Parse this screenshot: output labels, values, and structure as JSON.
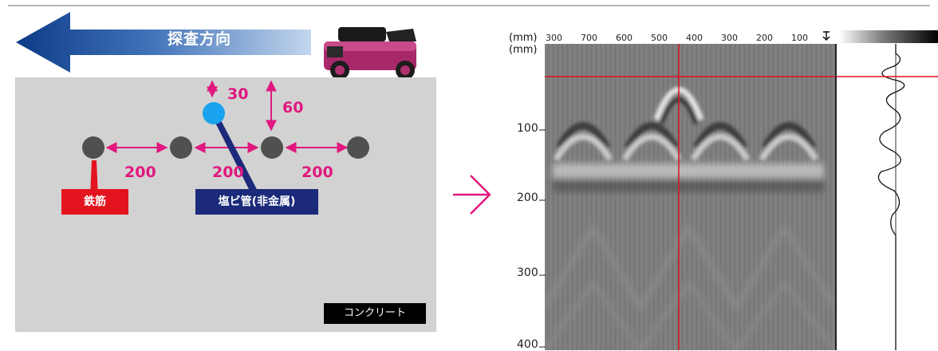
{
  "direction_label": "探査方向",
  "dimensions": {
    "cover_small": "30",
    "cover_large": "60",
    "spacing": [
      "200",
      "200",
      "200"
    ]
  },
  "labels": {
    "rebar": "鉄筋",
    "pvc_pipe": "塩ビ管(非金属)",
    "concrete": "コンクリート"
  },
  "colors": {
    "arrow_dark": "#0d3c87",
    "arrow_light": "#b8cde9",
    "rebar_dot": "#505050",
    "pipe_dot": "#1aa3ee",
    "dimension": "#e0187f",
    "rebar_label_bg": "#e3141f",
    "pipe_label_bg": "#1b2a7a",
    "transition_arrow": "#e0187f",
    "crosshair": "#e01020",
    "device_body": "#b03070"
  },
  "radargram": {
    "x_unit": "(mm)",
    "y_unit": "(mm)",
    "x_ticks": [
      "300",
      "700",
      "600",
      "500",
      "400",
      "300",
      "200",
      "100"
    ],
    "y_ticks": [
      "100",
      "200",
      "300",
      "400"
    ]
  }
}
